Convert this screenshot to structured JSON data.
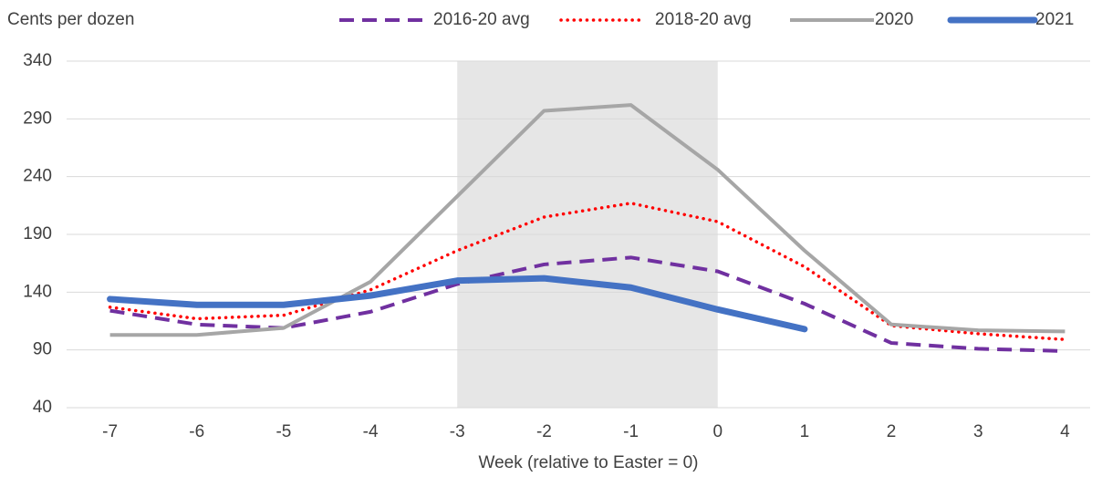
{
  "chart_data": {
    "type": "line",
    "ylabel": "Cents per dozen",
    "xlabel": "Week (relative to Easter = 0)",
    "x": [
      -7,
      -6,
      -5,
      -4,
      -3,
      -2,
      -1,
      0,
      1,
      2,
      3,
      4
    ],
    "xlim": [
      -7.5,
      4.5
    ],
    "xticks": [
      -7,
      -6,
      -5,
      -4,
      -3,
      -2,
      -1,
      0,
      1,
      2,
      3,
      4
    ],
    "ylim": [
      40,
      340
    ],
    "yticks": [
      40,
      90,
      140,
      190,
      240,
      290,
      340
    ],
    "grid": true,
    "legend": "top",
    "shaded_range": [
      -3,
      0
    ],
    "shade_color": "#e6e6e6",
    "series": [
      {
        "name": "2016-20 avg",
        "color": "#7030a0",
        "style": "dashed",
        "values": [
          124,
          112,
          109,
          123,
          147,
          164,
          170,
          158,
          130,
          96,
          91,
          89
        ]
      },
      {
        "name": "2018-20 avg",
        "color": "#ff0000",
        "style": "dotted",
        "values": [
          127,
          117,
          120,
          142,
          176,
          205,
          217,
          201,
          162,
          111,
          104,
          99
        ]
      },
      {
        "name": "2020",
        "color": "#a6a6a6",
        "style": "solid",
        "values": [
          103,
          103,
          109,
          149,
          223,
          297,
          302,
          246,
          176,
          112,
          107,
          106
        ]
      },
      {
        "name": "2021",
        "color": "#4472c4",
        "style": "thick",
        "values": [
          134,
          129,
          129,
          137,
          150,
          152,
          144,
          125,
          108,
          null,
          null,
          null
        ]
      }
    ]
  }
}
